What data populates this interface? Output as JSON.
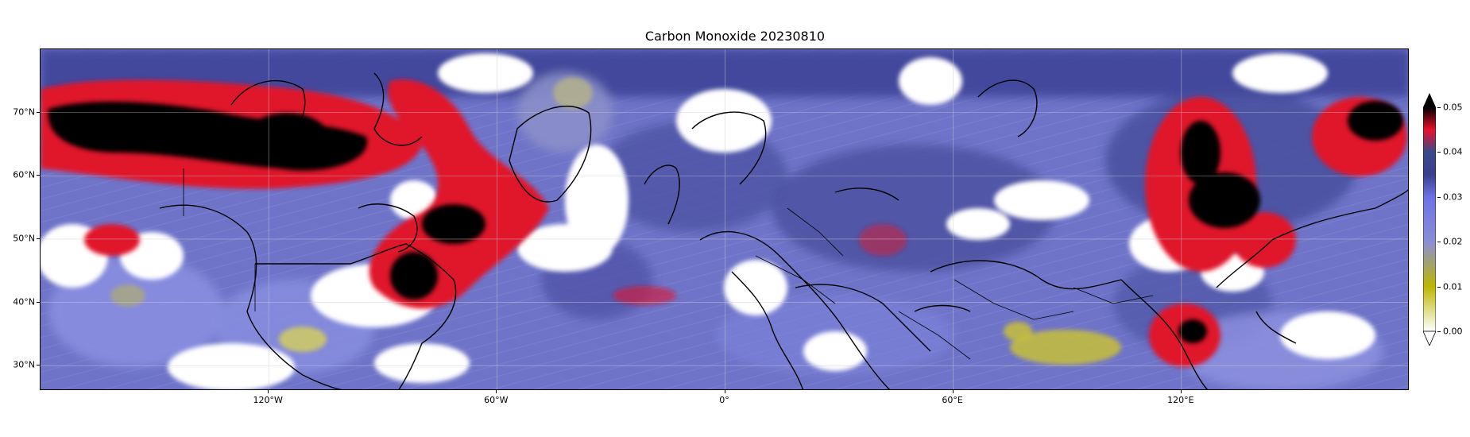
{
  "title": "Carbon Monoxide 20230810",
  "map": {
    "projection": "plate-carree",
    "lon_range": [
      -180,
      180
    ],
    "lat_range": [
      26,
      80
    ],
    "lon_ticks": [
      {
        "value": -120,
        "label": "120°W"
      },
      {
        "value": -60,
        "label": "60°W"
      },
      {
        "value": 0,
        "label": "0°"
      },
      {
        "value": 60,
        "label": "60°E"
      },
      {
        "value": 120,
        "label": "120°E"
      }
    ],
    "lat_ticks": [
      {
        "value": 70,
        "label": "70°N"
      },
      {
        "value": 60,
        "label": "60°N"
      },
      {
        "value": 50,
        "label": "50°N"
      },
      {
        "value": 40,
        "label": "40°N"
      },
      {
        "value": 30,
        "label": "30°N"
      }
    ],
    "grid": true,
    "base_color": "#6f74c8"
  },
  "colorbar": {
    "min": 0.0,
    "max": 0.05,
    "ticks": [
      "0.05",
      "0.04",
      "0.03",
      "0.02",
      "0.01",
      "0.00"
    ],
    "extend": "both",
    "stops": [
      {
        "value": 0.0,
        "color": "#ffffff"
      },
      {
        "value": 0.01,
        "color": "#bdb600"
      },
      {
        "value": 0.02,
        "color": "#8a8ed6"
      },
      {
        "value": 0.03,
        "color": "#6c72e6"
      },
      {
        "value": 0.035,
        "color": "#3b3f8e"
      },
      {
        "value": 0.04,
        "color": "#3a4a8a"
      },
      {
        "value": 0.045,
        "color": "#e8102a"
      },
      {
        "value": 0.05,
        "color": "#000000"
      }
    ]
  }
}
